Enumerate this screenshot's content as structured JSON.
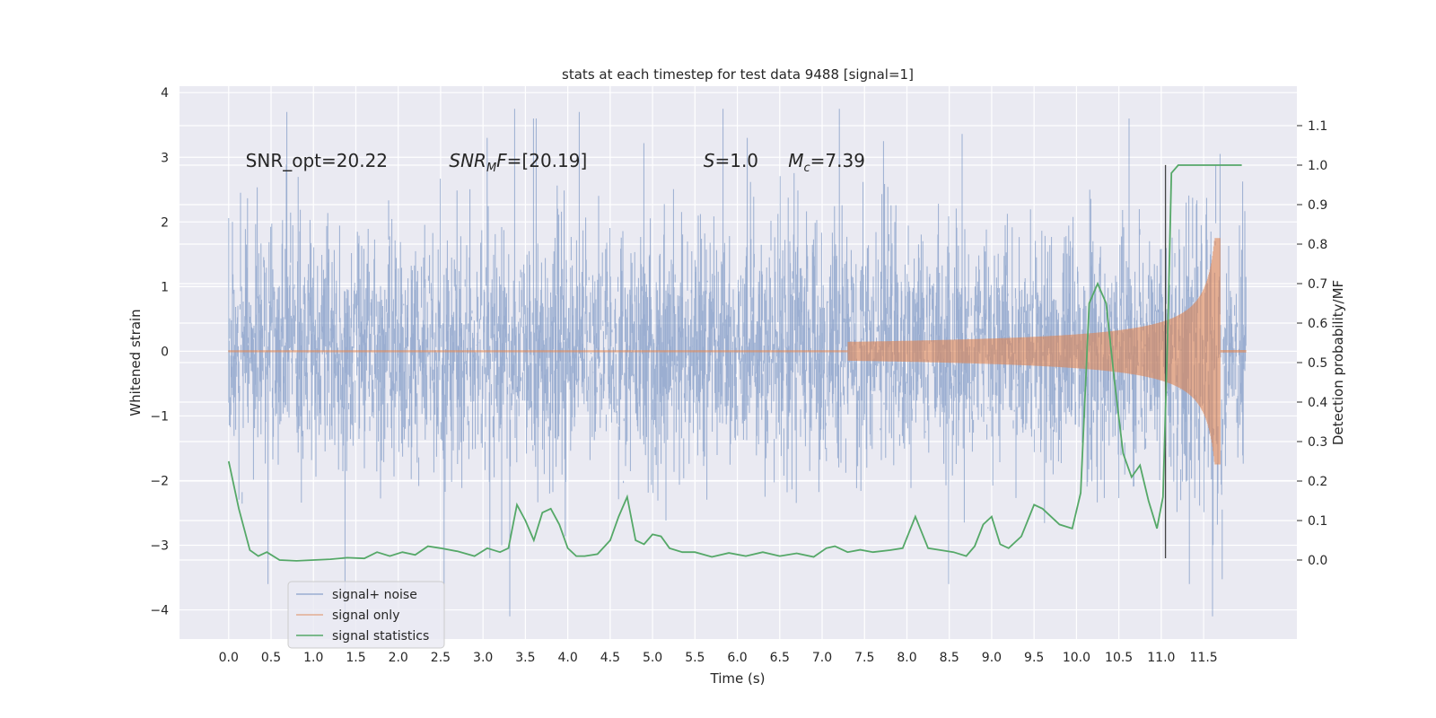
{
  "chart_data": {
    "type": "line",
    "title": "stats at each timestep for test data 9488 [signal=1]",
    "xlabel": "Time (s)",
    "ylabel": "Whitened strain",
    "ylabel_right": "Detection probability/MF",
    "xlim": [
      -0.58,
      12.6
    ],
    "ylim": [
      -4.45,
      4.1
    ],
    "ylim_right": [
      -0.2,
      1.2
    ],
    "x_ticks": [
      0.0,
      0.5,
      1.0,
      1.5,
      2.0,
      2.5,
      3.0,
      3.5,
      4.0,
      4.5,
      5.0,
      5.5,
      6.0,
      6.5,
      7.0,
      7.5,
      8.0,
      8.5,
      9.0,
      9.5,
      10.0,
      10.5,
      11.0,
      11.5
    ],
    "x_tick_labels": [
      "0.0",
      "0.5",
      "1.0",
      "1.5",
      "2.0",
      "2.5",
      "3.0",
      "3.5",
      "4.0",
      "4.5",
      "5.0",
      "5.5",
      "6.0",
      "6.5",
      "7.0",
      "7.5",
      "8.0",
      "8.5",
      "9.0",
      "9.5",
      "10.0",
      "10.5",
      "11.0",
      "11.5"
    ],
    "y_ticks": [
      -4,
      -3,
      -2,
      -1,
      0,
      1,
      2,
      3,
      4
    ],
    "y_tick_labels": [
      "−4",
      "−3",
      "−2",
      "−1",
      "0",
      "1",
      "2",
      "3",
      "4"
    ],
    "y_ticks_right": [
      0.0,
      0.1,
      0.2,
      0.3,
      0.4,
      0.5,
      0.6,
      0.7,
      0.8,
      0.9,
      1.0,
      1.1
    ],
    "y_tick_labels_right": [
      "0.0",
      "0.1",
      "0.2",
      "0.3",
      "0.4",
      "0.5",
      "0.6",
      "0.7",
      "0.8",
      "0.9",
      "1.0",
      "1.1"
    ],
    "grid": true,
    "legend_position": "lower-left",
    "annotations": [
      {
        "html": "SNR_opt=20.22",
        "x": 0.2
      },
      {
        "html": "<tspan font-style='italic'>SNR</tspan><tspan font-style='italic' font-size='13' dy='5'>M</tspan><tspan font-style='italic' dy='-5'>F</tspan>=[20.19]",
        "x": 2.6
      },
      {
        "html": "<tspan font-style='italic'>S</tspan>=1.0",
        "x": 5.6
      },
      {
        "html": "<tspan font-style='italic'>M</tspan><tspan font-style='italic' font-size='13' dy='5'>c</tspan><tspan dy='-5'>=7.39</tspan>",
        "x": 6.6
      }
    ],
    "annotation_y": 2.95,
    "vline": {
      "x": 11.05,
      "y_range": [
        -3.2,
        2.88
      ]
    },
    "series": [
      {
        "name": "signal+ noise",
        "color": "#4c72b0",
        "opacity": 0.5,
        "x_range": [
          0.0,
          12.0
        ],
        "std": 0.92,
        "envelope_peaks": [
          3.7,
          3.6,
          3.75,
          3.7,
          3.3,
          3.5
        ],
        "envelope_troughs": [
          -3.2,
          -3.6,
          -3.55,
          -3.4,
          -3.6,
          -4.1
        ]
      },
      {
        "name": "signal only",
        "color": "#dd8452",
        "opacity": 0.6,
        "x_range": [
          0.0,
          12.0
        ],
        "chirp_start": 7.3,
        "merger": 11.65,
        "peak_amplitude": 1.75
      },
      {
        "name": "signal statistics",
        "color": "#55a868",
        "axis": "right",
        "x": [
          0.0,
          0.12,
          0.25,
          0.35,
          0.45,
          0.6,
          0.8,
          1.0,
          1.2,
          1.4,
          1.6,
          1.75,
          1.9,
          2.05,
          2.2,
          2.35,
          2.5,
          2.7,
          2.9,
          3.05,
          3.2,
          3.3,
          3.4,
          3.5,
          3.6,
          3.7,
          3.8,
          3.9,
          4.0,
          4.1,
          4.2,
          4.35,
          4.5,
          4.6,
          4.7,
          4.8,
          4.9,
          5.0,
          5.1,
          5.2,
          5.35,
          5.5,
          5.7,
          5.9,
          6.1,
          6.3,
          6.5,
          6.7,
          6.9,
          7.05,
          7.15,
          7.3,
          7.45,
          7.6,
          7.8,
          7.95,
          8.1,
          8.25,
          8.4,
          8.55,
          8.7,
          8.8,
          8.9,
          9.0,
          9.1,
          9.2,
          9.35,
          9.5,
          9.6,
          9.8,
          9.95,
          10.05,
          10.15,
          10.25,
          10.35,
          10.45,
          10.55,
          10.65,
          10.75,
          10.85,
          10.95,
          11.02,
          11.08,
          11.12,
          11.2,
          11.3,
          11.5,
          11.8,
          11.95
        ],
        "values": [
          0.25,
          0.13,
          0.025,
          0.01,
          0.02,
          0.0,
          -0.002,
          0.0,
          0.002,
          0.006,
          0.004,
          0.02,
          0.01,
          0.02,
          0.013,
          0.035,
          0.03,
          0.022,
          0.01,
          0.03,
          0.02,
          0.03,
          0.14,
          0.1,
          0.05,
          0.12,
          0.13,
          0.09,
          0.03,
          0.01,
          0.01,
          0.015,
          0.05,
          0.11,
          0.16,
          0.05,
          0.04,
          0.065,
          0.06,
          0.03,
          0.02,
          0.02,
          0.008,
          0.018,
          0.01,
          0.02,
          0.01,
          0.017,
          0.008,
          0.03,
          0.035,
          0.02,
          0.026,
          0.02,
          0.025,
          0.03,
          0.11,
          0.03,
          0.025,
          0.02,
          0.01,
          0.035,
          0.09,
          0.11,
          0.04,
          0.03,
          0.06,
          0.14,
          0.13,
          0.09,
          0.08,
          0.17,
          0.65,
          0.7,
          0.65,
          0.45,
          0.27,
          0.21,
          0.24,
          0.15,
          0.08,
          0.16,
          0.6,
          0.98,
          1.0,
          1.0,
          1.0,
          1.0,
          1.0
        ]
      }
    ]
  }
}
